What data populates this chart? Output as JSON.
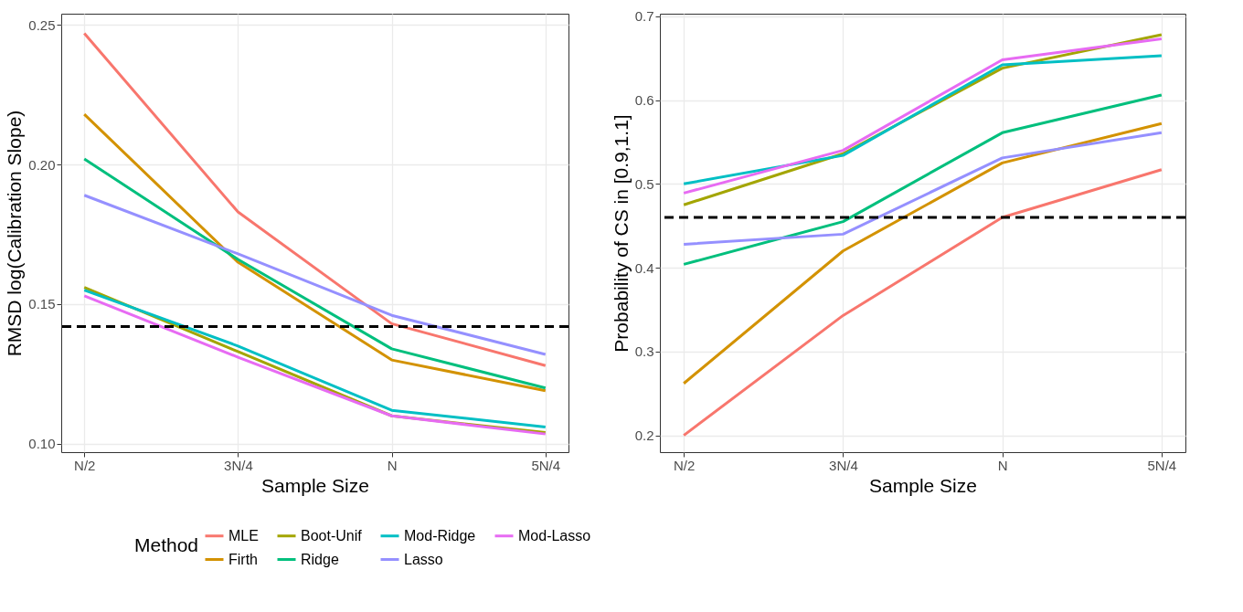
{
  "chart_data": [
    {
      "type": "line",
      "xlabel": "Sample Size",
      "ylabel": "RMSD log(Calibration Slope)",
      "categories": [
        "N/2",
        "3N/4",
        "N",
        "5N/4"
      ],
      "ylim": [
        0.097,
        0.254
      ],
      "yticks": [
        {
          "value": 0.1,
          "label": "0.10"
        },
        0.15,
        {
          "value": 0.2,
          "label": "0.20"
        },
        0.25
      ],
      "grid": true,
      "legend": "bottom",
      "legend_title": "Method",
      "line_style": "solid",
      "marker": "none",
      "ref_lines": [
        {
          "axis": "y",
          "value": 0.142,
          "line_style": "dashed",
          "color": "#000000"
        }
      ],
      "series": [
        {
          "name": "MLE",
          "color": "#F8766D",
          "values": [
            0.247,
            0.183,
            0.143,
            0.128
          ]
        },
        {
          "name": "Firth",
          "color": "#D39200",
          "values": [
            0.218,
            0.165,
            0.13,
            0.119
          ]
        },
        {
          "name": "Boot-Unif",
          "color": "#A3A500",
          "values": [
            0.156,
            0.133,
            0.11,
            0.104
          ]
        },
        {
          "name": "Ridge",
          "color": "#00BF7D",
          "values": [
            0.202,
            0.166,
            0.134,
            0.12
          ]
        },
        {
          "name": "Mod-Ridge",
          "color": "#00BFC4",
          "values": [
            0.155,
            0.135,
            0.112,
            0.106
          ]
        },
        {
          "name": "Lasso",
          "color": "#9590FF",
          "values": [
            0.189,
            0.168,
            0.146,
            0.132
          ]
        },
        {
          "name": "Mod-Lasso",
          "color": "#E76BF3",
          "values": [
            0.153,
            0.131,
            0.11,
            0.1035
          ]
        }
      ]
    },
    {
      "type": "line",
      "xlabel": "Sample Size",
      "ylabel": "Probability of CS in [0.9,1.1]",
      "categories": [
        "N/2",
        "3N/4",
        "N",
        "5N/4"
      ],
      "ylim": [
        0.18,
        0.703
      ],
      "yticks": [
        0.2,
        0.3,
        0.4,
        0.5,
        0.6,
        0.7
      ],
      "grid": true,
      "line_style": "solid",
      "marker": "none",
      "ref_lines": [
        {
          "axis": "y",
          "value": 0.46,
          "line_style": "dashed",
          "color": "#000000"
        }
      ],
      "series": [
        {
          "name": "MLE",
          "color": "#F8766D",
          "values": [
            0.2,
            0.343,
            0.46,
            0.517
          ]
        },
        {
          "name": "Firth",
          "color": "#D39200",
          "values": [
            0.262,
            0.42,
            0.525,
            0.572
          ]
        },
        {
          "name": "Boot-Unif",
          "color": "#A3A500",
          "values": [
            0.475,
            0.536,
            0.638,
            0.678
          ]
        },
        {
          "name": "Ridge",
          "color": "#00BF7D",
          "values": [
            0.404,
            0.455,
            0.561,
            0.606
          ]
        },
        {
          "name": "Mod-Ridge",
          "color": "#00BFC4",
          "values": [
            0.5,
            0.534,
            0.642,
            0.653
          ]
        },
        {
          "name": "Lasso",
          "color": "#9590FF",
          "values": [
            0.428,
            0.44,
            0.531,
            0.561
          ]
        },
        {
          "name": "Mod-Lasso",
          "color": "#E76BF3",
          "values": [
            0.489,
            0.54,
            0.648,
            0.673
          ]
        }
      ]
    }
  ]
}
